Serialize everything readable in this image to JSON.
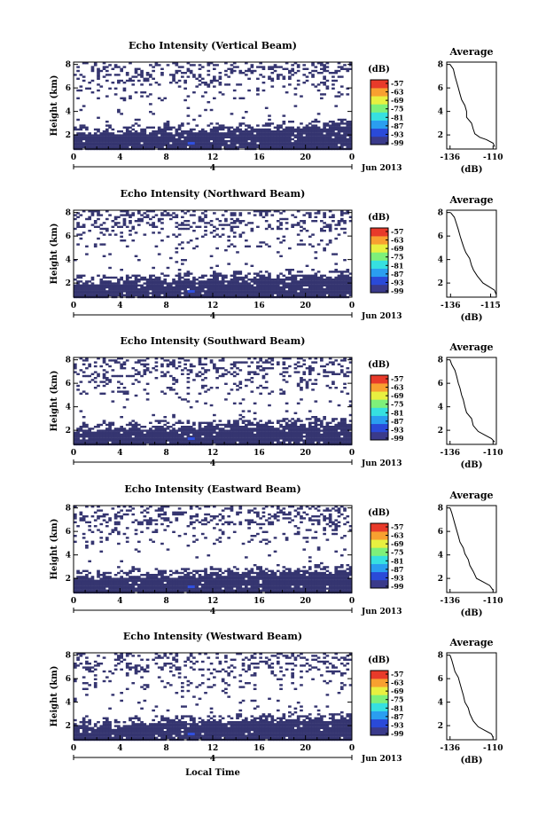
{
  "chart_data": [
    {
      "type": "heatmap",
      "title": "Echo Intensity (Vertical Beam)",
      "ylabel": "Height (km)",
      "x_ticks": [
        "0",
        "4",
        "8",
        "12",
        "16",
        "20",
        "0"
      ],
      "y_ticks": [
        "2",
        "4",
        "6",
        "8"
      ],
      "date_labels": {
        "day": "4",
        "month_year": "Jun 2013"
      },
      "xlim": [
        0,
        24
      ],
      "ylim": [
        0.8,
        8.2
      ],
      "colorbar": {
        "unit": "(dB)",
        "ticks": [
          "-57",
          "-63",
          "-69",
          "-75",
          "-81",
          "-87",
          "-93",
          "-99"
        ]
      },
      "profile": {
        "title": "Average",
        "xlabel": "(dB)",
        "x_ticks": [
          "-136",
          "-110"
        ],
        "y_ticks": [
          "2",
          "4",
          "6",
          "8"
        ],
        "xlim": [
          -138,
          -108
        ],
        "points": [
          [
            -109,
            1.0
          ],
          [
            -110,
            1.3
          ],
          [
            -114,
            1.6
          ],
          [
            -118,
            1.8
          ],
          [
            -121,
            2.1
          ],
          [
            -122,
            2.5
          ],
          [
            -123,
            3.0
          ],
          [
            -126,
            3.5
          ],
          [
            -126,
            4.0
          ],
          [
            -127,
            4.5
          ],
          [
            -129,
            5.0
          ],
          [
            -130,
            5.5
          ],
          [
            -131,
            6.0
          ],
          [
            -132,
            6.5
          ],
          [
            -133,
            7.0
          ],
          [
            -134,
            7.6
          ],
          [
            -136,
            8.0
          ]
        ]
      }
    },
    {
      "type": "heatmap",
      "title": "Echo Intensity (Northward Beam)",
      "ylabel": "Height (km)",
      "x_ticks": [
        "0",
        "4",
        "8",
        "12",
        "16",
        "20",
        "0"
      ],
      "y_ticks": [
        "2",
        "4",
        "6",
        "8"
      ],
      "date_labels": {
        "day": "4",
        "month_year": "Jun 2013"
      },
      "xlim": [
        0,
        24
      ],
      "ylim": [
        0.8,
        8.2
      ],
      "colorbar": {
        "unit": "(dB)",
        "ticks": [
          "-57",
          "-63",
          "-69",
          "-75",
          "-81",
          "-87",
          "-93",
          "-99"
        ]
      },
      "profile": {
        "title": "Average",
        "xlabel": "(dB)",
        "x_ticks": [
          "-136",
          "-115"
        ],
        "y_ticks": [
          "2",
          "4",
          "6",
          "8"
        ],
        "xlim": [
          -138,
          -112
        ],
        "points": [
          [
            -112,
            1.0
          ],
          [
            -113,
            1.4
          ],
          [
            -116,
            1.7
          ],
          [
            -119,
            2.0
          ],
          [
            -122,
            2.6
          ],
          [
            -124,
            3.1
          ],
          [
            -125,
            3.5
          ],
          [
            -126,
            4.1
          ],
          [
            -128,
            4.6
          ],
          [
            -129,
            5.0
          ],
          [
            -130,
            5.5
          ],
          [
            -131,
            6.0
          ],
          [
            -132,
            6.6
          ],
          [
            -133,
            7.1
          ],
          [
            -134,
            7.6
          ],
          [
            -136,
            8.0
          ]
        ]
      }
    },
    {
      "type": "heatmap",
      "title": "Echo Intensity (Southward Beam)",
      "ylabel": "Height (km)",
      "x_ticks": [
        "0",
        "4",
        "8",
        "12",
        "16",
        "20",
        "0"
      ],
      "y_ticks": [
        "2",
        "4",
        "6",
        "8"
      ],
      "date_labels": {
        "day": "4",
        "month_year": "Jun 2013"
      },
      "xlim": [
        0,
        24
      ],
      "ylim": [
        0.8,
        8.2
      ],
      "colorbar": {
        "unit": "(dB)",
        "ticks": [
          "-57",
          "-63",
          "-69",
          "-75",
          "-81",
          "-87",
          "-93",
          "-99"
        ]
      },
      "profile": {
        "title": "Average",
        "xlabel": "(dB)",
        "x_ticks": [
          "-136",
          "-110"
        ],
        "y_ticks": [
          "2",
          "4",
          "6",
          "8"
        ],
        "xlim": [
          -138,
          -108
        ],
        "points": [
          [
            -109,
            1.0
          ],
          [
            -111,
            1.3
          ],
          [
            -115,
            1.6
          ],
          [
            -119,
            1.9
          ],
          [
            -122,
            2.4
          ],
          [
            -123,
            3.0
          ],
          [
            -126,
            3.5
          ],
          [
            -127,
            4.0
          ],
          [
            -128,
            4.6
          ],
          [
            -129,
            5.0
          ],
          [
            -130,
            5.6
          ],
          [
            -131,
            6.0
          ],
          [
            -132,
            6.6
          ],
          [
            -133,
            7.1
          ],
          [
            -135,
            7.6
          ],
          [
            -136,
            8.0
          ]
        ]
      }
    },
    {
      "type": "heatmap",
      "title": "Echo Intensity (Eastward Beam)",
      "ylabel": "Height (km)",
      "x_ticks": [
        "0",
        "4",
        "8",
        "12",
        "16",
        "20",
        "0"
      ],
      "y_ticks": [
        "2",
        "4",
        "6",
        "8"
      ],
      "date_labels": {
        "day": "4",
        "month_year": "Jun 2013"
      },
      "xlim": [
        0,
        24
      ],
      "ylim": [
        0.8,
        8.2
      ],
      "colorbar": {
        "unit": "(dB)",
        "ticks": [
          "-57",
          "-63",
          "-69",
          "-75",
          "-81",
          "-87",
          "-93",
          "-99"
        ]
      },
      "profile": {
        "title": "Average",
        "xlabel": "(dB)",
        "x_ticks": [
          "-136",
          "-110"
        ],
        "y_ticks": [
          "2",
          "4",
          "6",
          "8"
        ],
        "xlim": [
          -138,
          -108
        ],
        "points": [
          [
            -110,
            1.0
          ],
          [
            -112,
            1.4
          ],
          [
            -116,
            1.7
          ],
          [
            -120,
            2.0
          ],
          [
            -122,
            2.6
          ],
          [
            -124,
            3.1
          ],
          [
            -125,
            3.6
          ],
          [
            -127,
            4.1
          ],
          [
            -128,
            4.6
          ],
          [
            -130,
            5.1
          ],
          [
            -131,
            5.6
          ],
          [
            -132,
            6.1
          ],
          [
            -133,
            6.6
          ],
          [
            -134,
            7.1
          ],
          [
            -135,
            7.6
          ],
          [
            -136,
            8.0
          ]
        ]
      }
    },
    {
      "type": "heatmap",
      "title": "Echo Intensity (Westward Beam)",
      "ylabel": "Height (km)",
      "xlabel": "Local Time",
      "x_ticks": [
        "0",
        "4",
        "8",
        "12",
        "16",
        "20",
        "0"
      ],
      "y_ticks": [
        "2",
        "4",
        "6",
        "8"
      ],
      "date_labels": {
        "day": "4",
        "month_year": "Jun 2013"
      },
      "xlim": [
        0,
        24
      ],
      "ylim": [
        0.8,
        8.2
      ],
      "colorbar": {
        "unit": "(dB)",
        "ticks": [
          "-57",
          "-63",
          "-69",
          "-75",
          "-81",
          "-87",
          "-93",
          "-99"
        ]
      },
      "profile": {
        "title": "Average",
        "xlabel": "(dB)",
        "x_ticks": [
          "-136",
          "-110"
        ],
        "y_ticks": [
          "2",
          "4",
          "6",
          "8"
        ],
        "xlim": [
          -138,
          -108
        ],
        "points": [
          [
            -110,
            1.0
          ],
          [
            -111,
            1.3
          ],
          [
            -115,
            1.6
          ],
          [
            -119,
            1.9
          ],
          [
            -122,
            2.4
          ],
          [
            -124,
            3.0
          ],
          [
            -125,
            3.5
          ],
          [
            -127,
            4.0
          ],
          [
            -128,
            4.6
          ],
          [
            -129,
            5.1
          ],
          [
            -130,
            5.6
          ],
          [
            -131,
            6.1
          ],
          [
            -133,
            6.6
          ],
          [
            -134,
            7.1
          ],
          [
            -135,
            7.6
          ],
          [
            -136,
            8.0
          ]
        ]
      }
    }
  ],
  "colors": {
    "echo_dark": "#353570",
    "colorbar_scale": [
      "#3a3a8a",
      "#2a4ad8",
      "#2a9ef0",
      "#36e0e0",
      "#7ef07a",
      "#e8f040",
      "#f8a030",
      "#e83a2a"
    ]
  }
}
